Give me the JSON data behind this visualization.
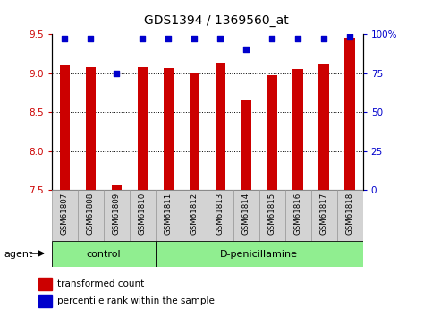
{
  "title": "GDS1394 / 1369560_at",
  "samples": [
    "GSM61807",
    "GSM61808",
    "GSM61809",
    "GSM61810",
    "GSM61811",
    "GSM61812",
    "GSM61813",
    "GSM61814",
    "GSM61815",
    "GSM61816",
    "GSM61817",
    "GSM61818"
  ],
  "red_values": [
    9.1,
    9.07,
    7.56,
    9.08,
    9.06,
    9.01,
    9.13,
    8.65,
    8.97,
    9.05,
    9.12,
    9.45
  ],
  "blue_values": [
    97,
    97,
    75,
    97,
    97,
    97,
    97,
    90,
    97,
    97,
    97,
    98
  ],
  "ylim_left": [
    7.5,
    9.5
  ],
  "ylim_right": [
    0,
    100
  ],
  "yticks_left": [
    7.5,
    8.0,
    8.5,
    9.0,
    9.5
  ],
  "yticks_right": [
    0,
    25,
    50,
    75,
    100
  ],
  "ytick_labels_right": [
    "0",
    "25",
    "50",
    "75",
    "100%"
  ],
  "grid_values": [
    8.0,
    8.5,
    9.0
  ],
  "bar_color": "#CC0000",
  "dot_color": "#0000CC",
  "bar_bottom": 7.5,
  "ctrl_count": 4,
  "group_labels": [
    "control",
    "D-penicillamine"
  ],
  "group_color": "#90EE90",
  "agent_label": "agent",
  "legend_items": [
    {
      "color": "#CC0000",
      "label": "transformed count"
    },
    {
      "color": "#0000CC",
      "label": "percentile rank within the sample"
    }
  ],
  "background_color": "#ffffff",
  "tick_color_left": "#CC0000",
  "tick_color_right": "#0000CC",
  "bar_width": 0.4,
  "title_fontsize": 10,
  "tick_fontsize": 7.5,
  "label_fontsize": 8
}
